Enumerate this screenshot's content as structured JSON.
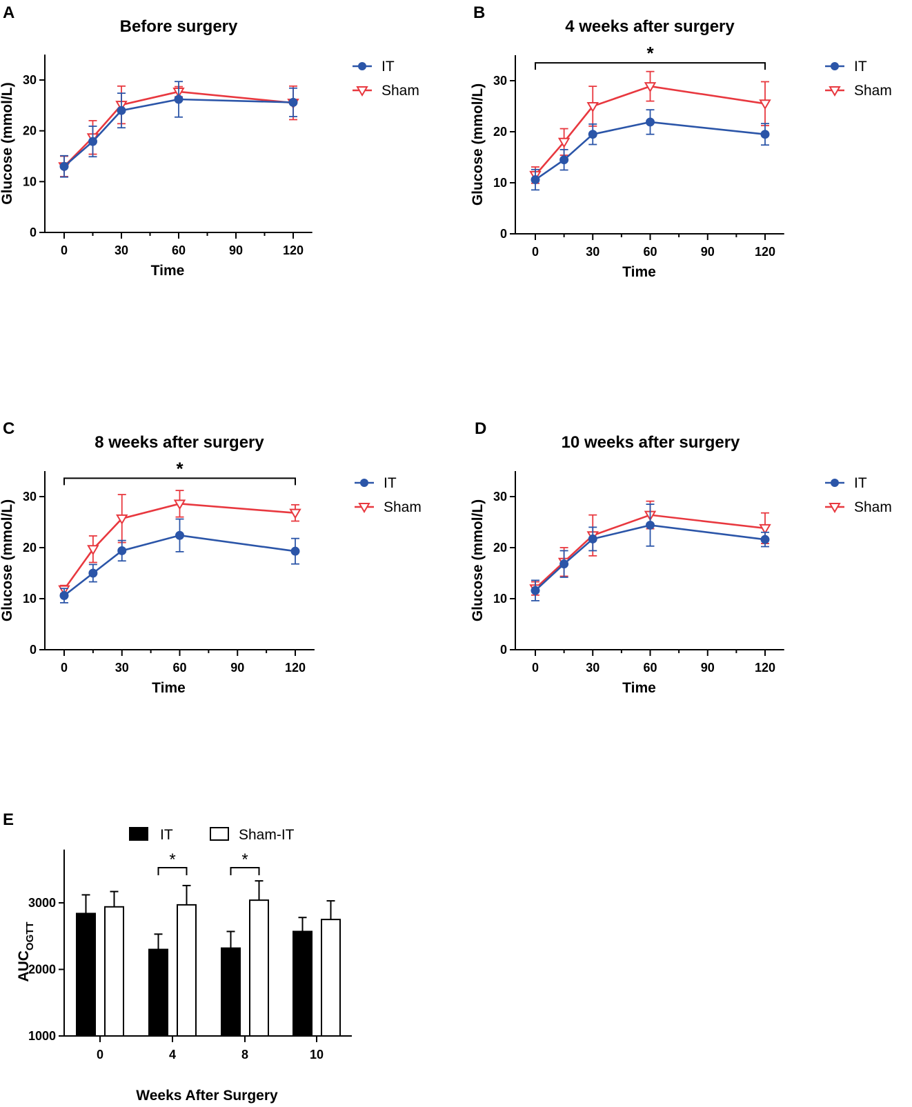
{
  "colors": {
    "IT": "#2b55a8",
    "Sham": "#e8383f",
    "axis": "#000000",
    "bar_it": "#000000",
    "bar_sham": "#ffffff"
  },
  "chart_data": [
    {
      "id": "A",
      "letter": "A",
      "type": "line",
      "title": "Before surgery",
      "xlabel": "Time",
      "ylabel": "Glucose (mmol/L)",
      "xlim": [
        -10,
        130
      ],
      "ylim": [
        0,
        35
      ],
      "xticks": [
        0,
        30,
        60,
        90,
        120
      ],
      "yticks": [
        0,
        10,
        20,
        30
      ],
      "x": [
        0,
        15,
        30,
        60,
        120
      ],
      "series": [
        {
          "name": "IT",
          "values": [
            13.0,
            17.9,
            24.0,
            26.2,
            25.6
          ],
          "errors": [
            2.1,
            3.0,
            3.4,
            3.5,
            2.8
          ]
        },
        {
          "name": "Sham",
          "values": [
            13.0,
            18.7,
            25.1,
            27.7,
            25.5
          ],
          "errors": [
            2.0,
            3.3,
            3.7,
            1.0,
            3.3
          ]
        }
      ],
      "significance": null
    },
    {
      "id": "B",
      "letter": "B",
      "type": "line",
      "title": "4 weeks after surgery",
      "xlabel": "Time",
      "ylabel": "Glucose (mmol/L)",
      "xlim": [
        -10,
        130
      ],
      "ylim": [
        0,
        35
      ],
      "xticks": [
        0,
        30,
        60,
        90,
        120
      ],
      "yticks": [
        0,
        10,
        20,
        30
      ],
      "x": [
        0,
        15,
        30,
        60,
        120
      ],
      "series": [
        {
          "name": "IT",
          "values": [
            10.6,
            14.5,
            19.5,
            21.9,
            19.5
          ],
          "errors": [
            2.0,
            2.0,
            2.0,
            2.4,
            2.1
          ]
        },
        {
          "name": "Sham",
          "values": [
            11.5,
            18.0,
            25.0,
            28.9,
            25.5
          ],
          "errors": [
            1.6,
            2.6,
            3.9,
            2.9,
            4.3
          ]
        }
      ],
      "significance": {
        "label": "*",
        "from": 0,
        "to": 120,
        "y": 33.5
      }
    },
    {
      "id": "C",
      "letter": "C",
      "type": "line",
      "title": "8 weeks after surgery",
      "xlabel": "Time",
      "ylabel": "Glucose (mmol/L)",
      "xlim": [
        -10,
        130
      ],
      "ylim": [
        0,
        35
      ],
      "xticks": [
        0,
        30,
        60,
        90,
        120
      ],
      "yticks": [
        0,
        10,
        20,
        30
      ],
      "x": [
        0,
        15,
        30,
        60,
        120
      ],
      "series": [
        {
          "name": "IT",
          "values": [
            10.6,
            15.0,
            19.4,
            22.4,
            19.3
          ],
          "errors": [
            1.4,
            1.7,
            2.0,
            3.2,
            2.5
          ]
        },
        {
          "name": "Sham",
          "values": [
            11.8,
            19.7,
            25.7,
            28.6,
            26.8
          ],
          "errors": [
            0.8,
            2.6,
            4.7,
            2.6,
            1.6
          ]
        }
      ],
      "significance": {
        "label": "*",
        "from": 0,
        "to": 120,
        "y": 33.6
      }
    },
    {
      "id": "D",
      "letter": "D",
      "type": "line",
      "title": "10 weeks after surgery",
      "xlabel": "Time",
      "ylabel": "Glucose (mmol/L)",
      "xlim": [
        -10,
        130
      ],
      "ylim": [
        0,
        35
      ],
      "xticks": [
        0,
        30,
        60,
        90,
        120
      ],
      "yticks": [
        0,
        10,
        20,
        30
      ],
      "x": [
        0,
        15,
        30,
        60,
        120
      ],
      "series": [
        {
          "name": "IT",
          "values": [
            11.6,
            16.8,
            21.7,
            24.4,
            21.6
          ],
          "errors": [
            2.0,
            2.6,
            2.3,
            4.1,
            1.4
          ]
        },
        {
          "name": "Sham",
          "values": [
            12.0,
            17.2,
            22.4,
            26.4,
            23.8
          ],
          "errors": [
            1.3,
            2.8,
            4.0,
            2.7,
            3.0
          ]
        }
      ],
      "significance": null
    },
    {
      "id": "E",
      "letter": "E",
      "type": "bar",
      "title": "",
      "xlabel": "Weeks After Surgery",
      "ylabel_main": "AUC",
      "ylabel_sub": "OGTT",
      "ylim": [
        1000,
        3800
      ],
      "yticks": [
        1000,
        2000,
        3000
      ],
      "categories": [
        "0",
        "4",
        "8",
        "10"
      ],
      "series": [
        {
          "name": "IT",
          "values": [
            2840,
            2300,
            2320,
            2570
          ],
          "errors": [
            280,
            230,
            250,
            210
          ]
        },
        {
          "name": "Sham-IT",
          "values": [
            2940,
            2970,
            3040,
            2750
          ],
          "errors": [
            230,
            290,
            290,
            280
          ]
        }
      ],
      "significance": [
        {
          "label": "*",
          "category": "4"
        },
        {
          "label": "*",
          "category": "8"
        }
      ]
    }
  ]
}
